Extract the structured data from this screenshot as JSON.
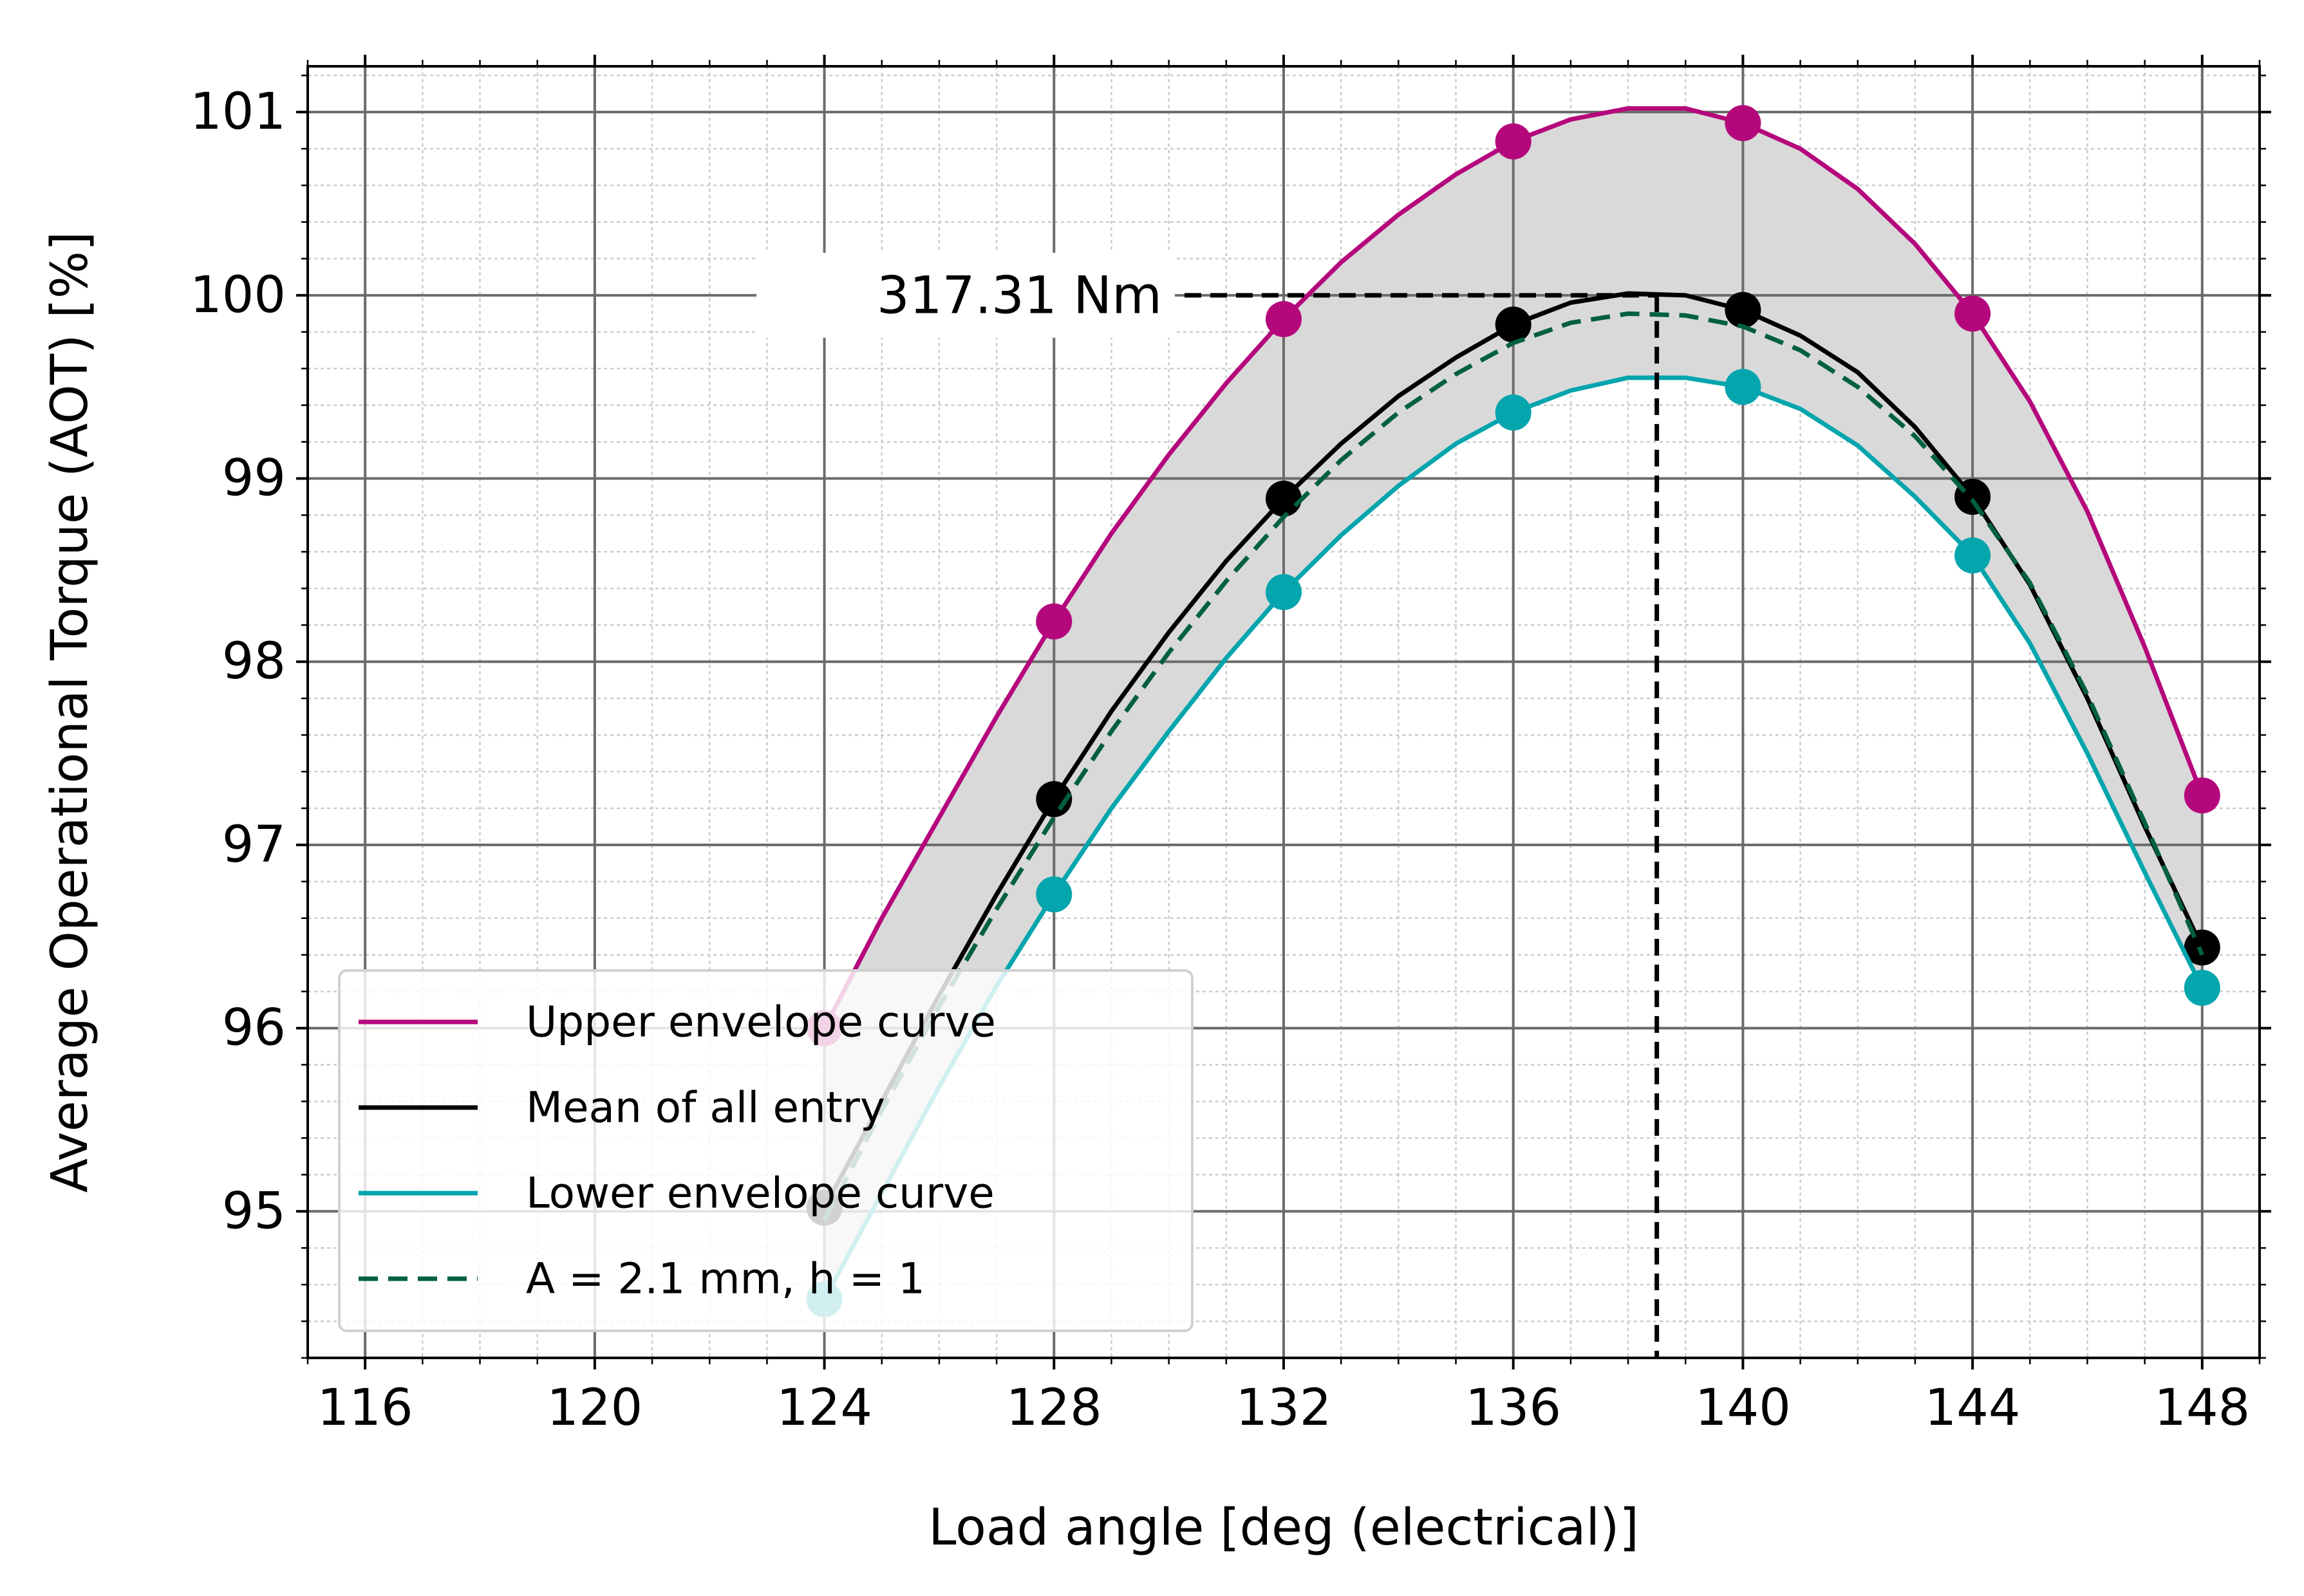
{
  "chart_data": {
    "type": "line",
    "xlabel": "Load angle [deg (electrical)]",
    "ylabel": "Average Operational Torque (AOT) [%]",
    "xlim": [
      115,
      149
    ],
    "ylim": [
      94.2,
      101.25
    ],
    "x_ticks": [
      116,
      120,
      124,
      128,
      132,
      136,
      140,
      144,
      148
    ],
    "y_ticks": [
      95,
      96,
      97,
      98,
      99,
      100,
      101
    ],
    "x_tick_labels": [
      "116",
      "120",
      "124",
      "128",
      "132",
      "136",
      "140",
      "144",
      "148"
    ],
    "y_tick_labels": [
      "95",
      "96",
      "97",
      "98",
      "99",
      "100",
      "101"
    ],
    "grid": true,
    "legend_position": "lower-left",
    "series": [
      {
        "name": "Upper envelope curve",
        "color": "#b5077c",
        "style": "solid",
        "x": [
          124,
          125,
          126,
          127,
          128,
          129,
          130,
          131,
          132,
          133,
          134,
          135,
          136,
          137,
          138,
          139,
          140,
          141,
          142,
          143,
          144,
          145,
          146,
          147,
          148
        ],
        "values": [
          96.0,
          96.6,
          97.15,
          97.7,
          98.22,
          98.7,
          99.13,
          99.52,
          99.87,
          100.18,
          100.44,
          100.66,
          100.84,
          100.96,
          101.02,
          101.02,
          100.94,
          100.8,
          100.58,
          100.28,
          99.9,
          99.42,
          98.82,
          98.08,
          97.27
        ],
        "markers_x": [
          124,
          128,
          132,
          136,
          140,
          144,
          148
        ],
        "markers_y": [
          96.0,
          98.22,
          99.87,
          100.84,
          100.94,
          99.9,
          97.27
        ]
      },
      {
        "name": "Mean of all entry",
        "color": "#000000",
        "style": "solid",
        "x": [
          124,
          125,
          126,
          127,
          128,
          129,
          130,
          131,
          132,
          133,
          134,
          135,
          136,
          137,
          138,
          139,
          140,
          141,
          142,
          143,
          144,
          145,
          146,
          147,
          148
        ],
        "values": [
          95.02,
          95.6,
          96.18,
          96.73,
          97.25,
          97.73,
          98.16,
          98.55,
          98.89,
          99.19,
          99.45,
          99.66,
          99.84,
          99.96,
          100.01,
          100.0,
          99.92,
          99.78,
          99.58,
          99.28,
          98.9,
          98.42,
          97.8,
          97.1,
          96.44
        ],
        "markers_x": [
          124,
          128,
          132,
          136,
          140,
          144,
          148
        ],
        "markers_y": [
          95.02,
          97.25,
          98.89,
          99.84,
          99.92,
          98.9,
          96.44
        ]
      },
      {
        "name": "Lower envelope curve",
        "color": "#04a5ad",
        "style": "solid",
        "x": [
          124,
          125,
          126,
          127,
          128,
          129,
          130,
          131,
          132,
          133,
          134,
          135,
          136,
          137,
          138,
          139,
          140,
          141,
          142,
          143,
          144,
          145,
          146,
          147,
          148
        ],
        "values": [
          94.52,
          95.1,
          95.68,
          96.23,
          96.73,
          97.2,
          97.62,
          98.02,
          98.38,
          98.69,
          98.96,
          99.19,
          99.36,
          99.48,
          99.55,
          99.55,
          99.5,
          99.38,
          99.18,
          98.9,
          98.58,
          98.1,
          97.5,
          96.85,
          96.22
        ],
        "markers_x": [
          124,
          128,
          132,
          136,
          140,
          144,
          148
        ],
        "markers_y": [
          94.52,
          96.73,
          98.38,
          99.36,
          99.5,
          98.58,
          96.22
        ]
      },
      {
        "name": "A = 2.1 mm, h = 1",
        "color": "#00603f",
        "style": "dashed",
        "x": [
          124,
          125,
          126,
          127,
          128,
          129,
          130,
          131,
          132,
          133,
          134,
          135,
          136,
          137,
          138,
          139,
          140,
          141,
          142,
          143,
          144,
          145,
          146,
          147,
          148
        ],
        "values": [
          94.95,
          95.55,
          96.12,
          96.65,
          97.15,
          97.62,
          98.05,
          98.44,
          98.79,
          99.1,
          99.36,
          99.57,
          99.74,
          99.85,
          99.9,
          99.89,
          99.83,
          99.7,
          99.5,
          99.23,
          98.88,
          98.43,
          97.82,
          97.12,
          96.4
        ]
      }
    ],
    "band": {
      "between": [
        "Upper envelope curve",
        "Lower envelope curve"
      ],
      "color": "#d9d9d9"
    },
    "annotation": {
      "text": "317.31 Nm",
      "x": 138.5,
      "y": 100.0
    }
  }
}
